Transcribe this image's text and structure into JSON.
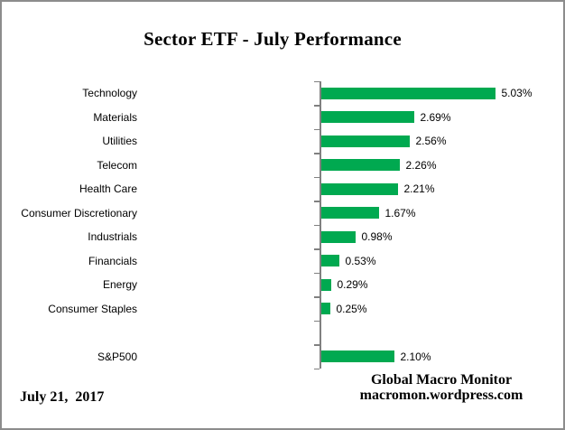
{
  "title": "Sector ETF - July Performance",
  "footer": {
    "date": "July 21,  2017",
    "credit_line1": "Global Macro Monitor",
    "credit_line2": "macromon.wordpress.com"
  },
  "colors": {
    "bar": "#00A950",
    "axis": "#808080",
    "text": "#000000"
  },
  "chart_data": {
    "type": "bar",
    "orientation": "horizontal",
    "title": "Sector ETF - July Performance",
    "categories": [
      "Technology",
      "Materials",
      "Utilities",
      "Telecom",
      "Health Care",
      "Consumer Discretionary",
      "Industrials",
      "Financials",
      "Energy",
      "Consumer Staples",
      "S&P500"
    ],
    "values": [
      5.03,
      2.69,
      2.56,
      2.26,
      2.21,
      1.67,
      0.98,
      0.53,
      0.29,
      0.25,
      2.1
    ],
    "labels": [
      "5.03%",
      "2.69%",
      "2.56%",
      "2.26%",
      "2.21%",
      "1.67%",
      "0.98%",
      "0.53%",
      "0.29%",
      "0.25%",
      "2.10%"
    ],
    "value_suffix": "%",
    "gap_before_last_category": true,
    "x_axis_labels_visible": false,
    "grid": false,
    "legend": false
  }
}
